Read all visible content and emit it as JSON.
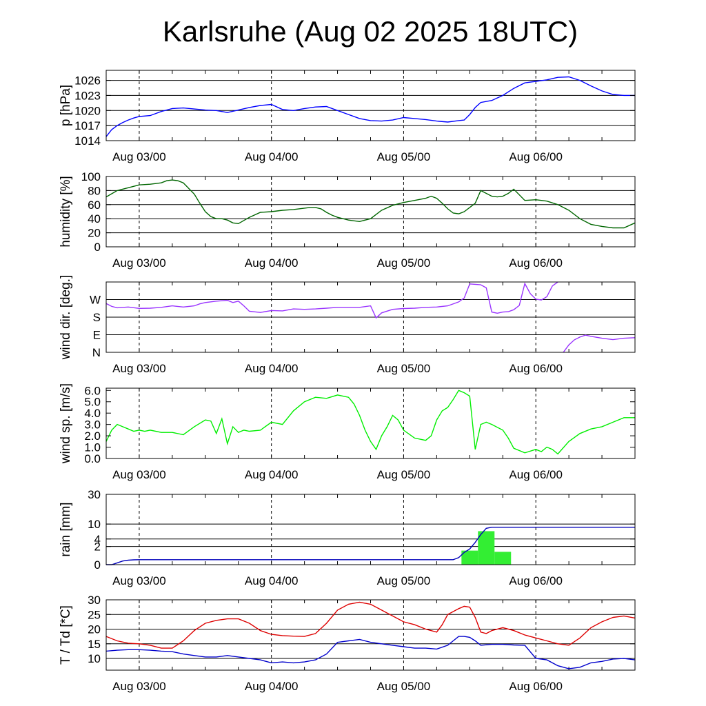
{
  "title": "Karlsruhe (Aug 02 2025 18UTC)",
  "chart_data": [
    {
      "type": "line",
      "name": "pressure",
      "ylabel": "p [hPa]",
      "ylim": [
        1014,
        1028
      ],
      "yticks": [
        "1014",
        "1017",
        "1020",
        "1023",
        "1026"
      ],
      "ytick_values": [
        1014,
        1017,
        1020,
        1023,
        1026
      ],
      "gridlines": [
        1017,
        1020,
        1023,
        1026
      ],
      "x_start": "Aug 02 18UTC",
      "x_unit": "hours",
      "xlim": [
        0,
        96
      ],
      "xticks": [
        "Aug 03/00",
        "Aug 04/00",
        "Aug 05/00",
        "Aug 06/00"
      ],
      "xtick_hours": [
        6,
        30,
        54,
        78
      ],
      "series": [
        {
          "color": "#0000ff",
          "x": [
            0,
            1,
            2,
            3,
            4,
            5,
            6,
            8,
            10,
            12,
            14,
            16,
            18,
            20,
            22,
            24,
            26,
            28,
            30,
            32,
            34,
            36,
            38,
            40,
            42,
            44,
            46,
            48,
            50,
            52,
            54,
            56,
            58,
            60,
            62,
            64,
            65,
            66,
            67,
            68,
            70,
            72,
            74,
            76,
            78,
            80,
            82,
            84,
            86,
            88,
            90,
            92,
            94,
            96
          ],
          "y": [
            1014.8,
            1016.2,
            1017.0,
            1017.6,
            1018.1,
            1018.5,
            1018.8,
            1019.0,
            1019.8,
            1020.4,
            1020.5,
            1020.3,
            1020.1,
            1020.0,
            1019.6,
            1020.1,
            1020.6,
            1021.0,
            1021.2,
            1020.2,
            1020.0,
            1020.4,
            1020.7,
            1020.8,
            1020.0,
            1019.2,
            1018.4,
            1018.0,
            1017.9,
            1018.1,
            1018.6,
            1018.4,
            1018.2,
            1017.9,
            1017.7,
            1018.0,
            1018.1,
            1019.2,
            1020.6,
            1021.6,
            1022.0,
            1023.0,
            1024.4,
            1025.5,
            1025.8,
            1026.1,
            1026.6,
            1026.7,
            1026.0,
            1024.9,
            1023.9,
            1023.2,
            1023.0,
            1023.0
          ]
        }
      ]
    },
    {
      "type": "line",
      "name": "humidity",
      "ylabel": "humidity [%]",
      "ylim": [
        0,
        100
      ],
      "yticks": [
        "0",
        "20",
        "40",
        "60",
        "80",
        "100"
      ],
      "ytick_values": [
        0,
        20,
        40,
        60,
        80,
        100
      ],
      "gridlines": [
        20,
        40,
        60,
        80
      ],
      "x_start": "Aug 02 18UTC",
      "x_unit": "hours",
      "xlim": [
        0,
        96
      ],
      "xticks": [
        "Aug 03/00",
        "Aug 04/00",
        "Aug 05/00",
        "Aug 06/00"
      ],
      "xtick_hours": [
        6,
        30,
        54,
        78
      ],
      "series": [
        {
          "color": "#006600",
          "x": [
            0,
            2,
            4,
            6,
            8,
            10,
            11,
            12,
            13,
            14,
            16,
            17,
            18,
            19,
            20,
            21,
            22,
            23,
            24,
            26,
            28,
            30,
            32,
            34,
            36,
            37,
            38,
            39,
            40,
            41,
            42,
            43,
            44,
            46,
            48,
            50,
            52,
            54,
            56,
            58,
            59,
            60,
            61,
            62,
            63,
            64,
            65,
            66,
            67,
            68,
            70,
            71,
            72,
            73,
            74,
            76,
            78,
            80,
            82,
            84,
            86,
            88,
            90,
            92,
            94,
            96
          ],
          "y": [
            71,
            80,
            84,
            88,
            89,
            91,
            94,
            95,
            94,
            91,
            75,
            62,
            50,
            43,
            40,
            40,
            38,
            34,
            33,
            42,
            49,
            50,
            52,
            53,
            55,
            56,
            56,
            54,
            49,
            45,
            42,
            40,
            38,
            36,
            40,
            52,
            59,
            63,
            66,
            69,
            72,
            69,
            62,
            54,
            48,
            47,
            50,
            56,
            62,
            80,
            72,
            71,
            72,
            76,
            82,
            66,
            67,
            65,
            60,
            52,
            40,
            32,
            29,
            27,
            27,
            34
          ]
        }
      ]
    },
    {
      "type": "line",
      "name": "wind direction",
      "ylabel": "wind dir. [deg.]",
      "ylim": [
        0,
        360
      ],
      "yticks": [
        "N",
        "E",
        "S",
        "W"
      ],
      "ytick_values": [
        0,
        90,
        180,
        270
      ],
      "gridlines": [
        90,
        180,
        270
      ],
      "x_start": "Aug 02 18UTC",
      "x_unit": "hours",
      "xlim": [
        0,
        96
      ],
      "xticks": [
        "Aug 03/00",
        "Aug 04/00",
        "Aug 05/00",
        "Aug 06/00"
      ],
      "xtick_hours": [
        6,
        30,
        54,
        78
      ],
      "series": [
        {
          "color": "#9933ff",
          "x": [
            0,
            1,
            2,
            4,
            6,
            8,
            10,
            12,
            14,
            16,
            17,
            18,
            20,
            22,
            23,
            24,
            25,
            26,
            28,
            30,
            32,
            34,
            36,
            38,
            40,
            42,
            44,
            46,
            48,
            49,
            50,
            52,
            54,
            56,
            58,
            60,
            62,
            64,
            65,
            66,
            67,
            68,
            69,
            70,
            71,
            72,
            73,
            74,
            75,
            76,
            77,
            78,
            79,
            80,
            81,
            82
          ],
          "y": [
            250,
            235,
            228,
            232,
            225,
            226,
            230,
            238,
            232,
            238,
            248,
            255,
            262,
            266,
            255,
            262,
            238,
            210,
            204,
            214,
            212,
            222,
            220,
            222,
            226,
            230,
            230,
            230,
            238,
            176,
            202,
            220,
            224,
            226,
            230,
            232,
            238,
            258,
            278,
            350,
            348,
            346,
            330,
            206,
            200,
            206,
            208,
            218,
            240,
            352,
            300,
            272,
            268,
            285,
            340,
            360
          ]
        },
        {
          "color": "#9933ff",
          "x": [
            83,
            84,
            85,
            86,
            87,
            88,
            90,
            92,
            94,
            96
          ],
          "y": [
            0,
            38,
            64,
            78,
            88,
            82,
            72,
            65,
            72,
            75
          ]
        }
      ]
    },
    {
      "type": "line",
      "name": "wind speed",
      "ylabel": "wind sp. [m/s]",
      "ylim": [
        0,
        6.2
      ],
      "yticks": [
        "0.0",
        "1.0",
        "2.0",
        "3.0",
        "4.0",
        "5.0",
        "6.0"
      ],
      "ytick_values": [
        0,
        1,
        2,
        3,
        4,
        5,
        6
      ],
      "gridlines": [],
      "x_start": "Aug 02 18UTC",
      "x_unit": "hours",
      "xlim": [
        0,
        96
      ],
      "xticks": [
        "Aug 03/00",
        "Aug 04/00",
        "Aug 05/00",
        "Aug 06/00"
      ],
      "xtick_hours": [
        6,
        30,
        54,
        78
      ],
      "series": [
        {
          "color": "#00ee00",
          "x": [
            0,
            1,
            2,
            3,
            4,
            5,
            6,
            7,
            8,
            10,
            12,
            14,
            16,
            18,
            19,
            20,
            21,
            22,
            23,
            24,
            25,
            26,
            28,
            30,
            32,
            34,
            36,
            38,
            40,
            42,
            44,
            45,
            46,
            47,
            48,
            49,
            50,
            51,
            52,
            53,
            54,
            56,
            58,
            59,
            60,
            61,
            62,
            63,
            64,
            65,
            66,
            67,
            68,
            69,
            70,
            72,
            73,
            74,
            76,
            78,
            79,
            80,
            81,
            82,
            84,
            86,
            88,
            90,
            92,
            94,
            96
          ],
          "y": [
            1.5,
            2.5,
            3.0,
            2.8,
            2.6,
            2.4,
            2.5,
            2.4,
            2.5,
            2.3,
            2.3,
            2.1,
            2.8,
            3.4,
            3.3,
            2.2,
            3.5,
            1.3,
            2.8,
            2.3,
            2.5,
            2.4,
            2.5,
            3.2,
            3.0,
            4.2,
            5.0,
            5.4,
            5.3,
            5.6,
            5.4,
            4.8,
            3.8,
            2.5,
            1.5,
            0.8,
            2.0,
            2.8,
            3.8,
            3.4,
            2.5,
            1.8,
            1.6,
            2.0,
            3.4,
            4.2,
            4.5,
            5.2,
            6.0,
            5.8,
            5.5,
            0.8,
            3.0,
            3.2,
            3.0,
            2.5,
            1.8,
            0.9,
            0.5,
            0.8,
            0.6,
            1.0,
            0.8,
            0.4,
            1.5,
            2.2,
            2.6,
            2.8,
            3.2,
            3.6,
            3.6
          ]
        }
      ]
    },
    {
      "type": "bar",
      "name": "rain",
      "ylabel": "rain [mm]",
      "ylim": [
        0,
        30
      ],
      "scale": "sqrt",
      "yticks": [
        "0",
        "2",
        "4",
        "10",
        "30"
      ],
      "ytick_values": [
        0,
        2,
        4,
        10,
        30
      ],
      "gridlines": [
        2,
        4,
        10
      ],
      "x_start": "Aug 02 18UTC",
      "x_unit": "hours",
      "xlim": [
        0,
        96
      ],
      "xticks": [
        "Aug 03/00",
        "Aug 04/00",
        "Aug 05/00",
        "Aug 06/00"
      ],
      "xtick_hours": [
        6,
        30,
        54,
        78
      ],
      "bars": [
        {
          "x0": 64.5,
          "x1": 67.5,
          "value": 1.2,
          "color": "#33ee33"
        },
        {
          "x0": 67.5,
          "x1": 70.5,
          "value": 6.8,
          "color": "#33ee33"
        },
        {
          "x0": 70.5,
          "x1": 73.5,
          "value": 1.0,
          "color": "#33ee33"
        }
      ],
      "series": [
        {
          "color": "#0000bb",
          "x": [
            0,
            1,
            2,
            3,
            4,
            5,
            6,
            30,
            54,
            63,
            64,
            65,
            66,
            67,
            68,
            69,
            70,
            96
          ],
          "y": [
            0,
            0,
            0.02,
            0.08,
            0.12,
            0.14,
            0.15,
            0.15,
            0.15,
            0.15,
            0.3,
            0.9,
            1.5,
            3.0,
            5.5,
            8.0,
            8.5,
            8.5
          ]
        }
      ]
    },
    {
      "type": "line",
      "name": "temperature and dew point",
      "ylabel": "T / Td [*C]",
      "ylim": [
        6,
        30
      ],
      "yticks": [
        "10",
        "15",
        "20",
        "25",
        "30"
      ],
      "ytick_values": [
        10,
        15,
        20,
        25,
        30
      ],
      "gridlines": [
        10,
        15,
        20,
        25
      ],
      "x_start": "Aug 02 18UTC",
      "x_unit": "hours",
      "xlim": [
        0,
        96
      ],
      "xticks": [
        "Aug 03/00",
        "Aug 04/00",
        "Aug 05/00",
        "Aug 06/00"
      ],
      "xtick_hours": [
        6,
        30,
        54,
        78
      ],
      "series": [
        {
          "color": "#dd0000",
          "x": [
            0,
            2,
            4,
            6,
            8,
            10,
            12,
            14,
            16,
            18,
            20,
            22,
            24,
            26,
            28,
            30,
            32,
            34,
            36,
            38,
            40,
            42,
            44,
            46,
            48,
            50,
            52,
            54,
            56,
            58,
            60,
            61,
            62,
            64,
            65,
            66,
            67,
            68,
            69,
            70,
            72,
            74,
            76,
            78,
            80,
            82,
            84,
            86,
            88,
            90,
            92,
            94,
            96
          ],
          "y": [
            17.5,
            16,
            15.2,
            15,
            14.5,
            13.5,
            13.5,
            16,
            19.5,
            22,
            23,
            23.5,
            23.5,
            22,
            19.5,
            18.2,
            17.8,
            17.6,
            17.5,
            18.5,
            22,
            26.5,
            28.5,
            29.2,
            28.5,
            26.5,
            24.5,
            22.5,
            21.5,
            20,
            19,
            21.5,
            25,
            27,
            27.8,
            27.5,
            24,
            19,
            18.5,
            19.5,
            20.5,
            19.5,
            18,
            17,
            16,
            15,
            14.5,
            17,
            20.5,
            22.5,
            24,
            24.5,
            23.8
          ]
        },
        {
          "color": "#0000cc",
          "x": [
            0,
            2,
            4,
            6,
            8,
            10,
            12,
            14,
            16,
            18,
            20,
            22,
            24,
            26,
            28,
            30,
            32,
            34,
            36,
            38,
            40,
            42,
            44,
            46,
            48,
            50,
            52,
            54,
            56,
            58,
            60,
            62,
            63,
            64,
            65,
            66,
            67,
            68,
            70,
            72,
            74,
            76,
            78,
            80,
            82,
            84,
            86,
            88,
            90,
            92,
            94,
            96
          ],
          "y": [
            12.5,
            12.8,
            13,
            13,
            12.8,
            12.5,
            12.3,
            11.5,
            11,
            10.5,
            10.5,
            11,
            10.5,
            10,
            9.5,
            8.5,
            8.8,
            8.5,
            8.8,
            9.5,
            11.5,
            15.5,
            16,
            16.5,
            15.5,
            15,
            14.5,
            14,
            13.5,
            13.5,
            13.2,
            14.5,
            16,
            17.5,
            17.5,
            17.2,
            16,
            14.5,
            14.8,
            14.8,
            14.6,
            14.5,
            10,
            9.5,
            7.5,
            6.5,
            7,
            8.5,
            9,
            9.8,
            10,
            9.5
          ]
        }
      ]
    }
  ]
}
